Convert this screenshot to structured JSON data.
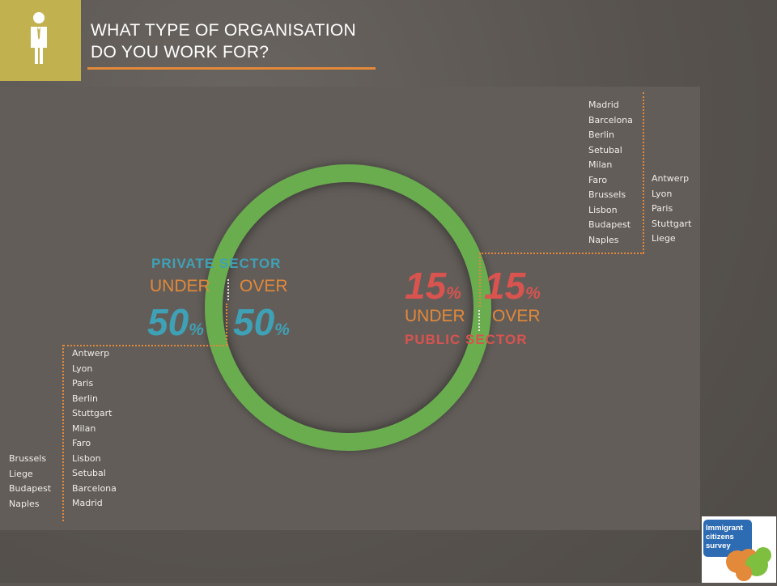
{
  "header": {
    "title_line1": "WHAT TYPE OF ORGANISATION",
    "title_line2": "DO YOU WORK FOR?",
    "icon": "businessman-icon"
  },
  "private_sector": {
    "label": "PRIVATE SECTOR",
    "under_label": "UNDER",
    "over_label": "OVER",
    "under_value": "50",
    "over_value": "50",
    "percent_sign": "%",
    "color": "#3fa1b5",
    "under_cities": [
      "Antwerp",
      "Lyon",
      "Paris",
      "Berlin",
      "Stuttgart",
      "Milan",
      "Faro",
      "Lisbon",
      "Setubal",
      "Barcelona",
      "Madrid"
    ],
    "over_cities": [
      "Brussels",
      "Liege",
      "Budapest",
      "Naples"
    ]
  },
  "public_sector": {
    "label": "PUBLIC SECTOR",
    "under_label": "UNDER",
    "over_label": "OVER",
    "under_value": "15",
    "over_value": "15",
    "percent_sign": "%",
    "color": "#d9534f",
    "under_cities": [
      "Madrid",
      "Barcelona",
      "Berlin",
      "Setubal",
      "Milan",
      "Faro",
      "Brussels",
      "Lisbon",
      "Budapest",
      "Naples"
    ],
    "over_cities": [
      "Antwerp",
      "Lyon",
      "Paris",
      "Stuttgart",
      "Liege"
    ]
  },
  "colors": {
    "accent_orange": "#e2893a",
    "ring_green": "#6aad4f",
    "icon_box": "#c2b14f"
  },
  "logo": {
    "line1": "Immigrant",
    "line2": "citizens",
    "line3": "survey"
  }
}
